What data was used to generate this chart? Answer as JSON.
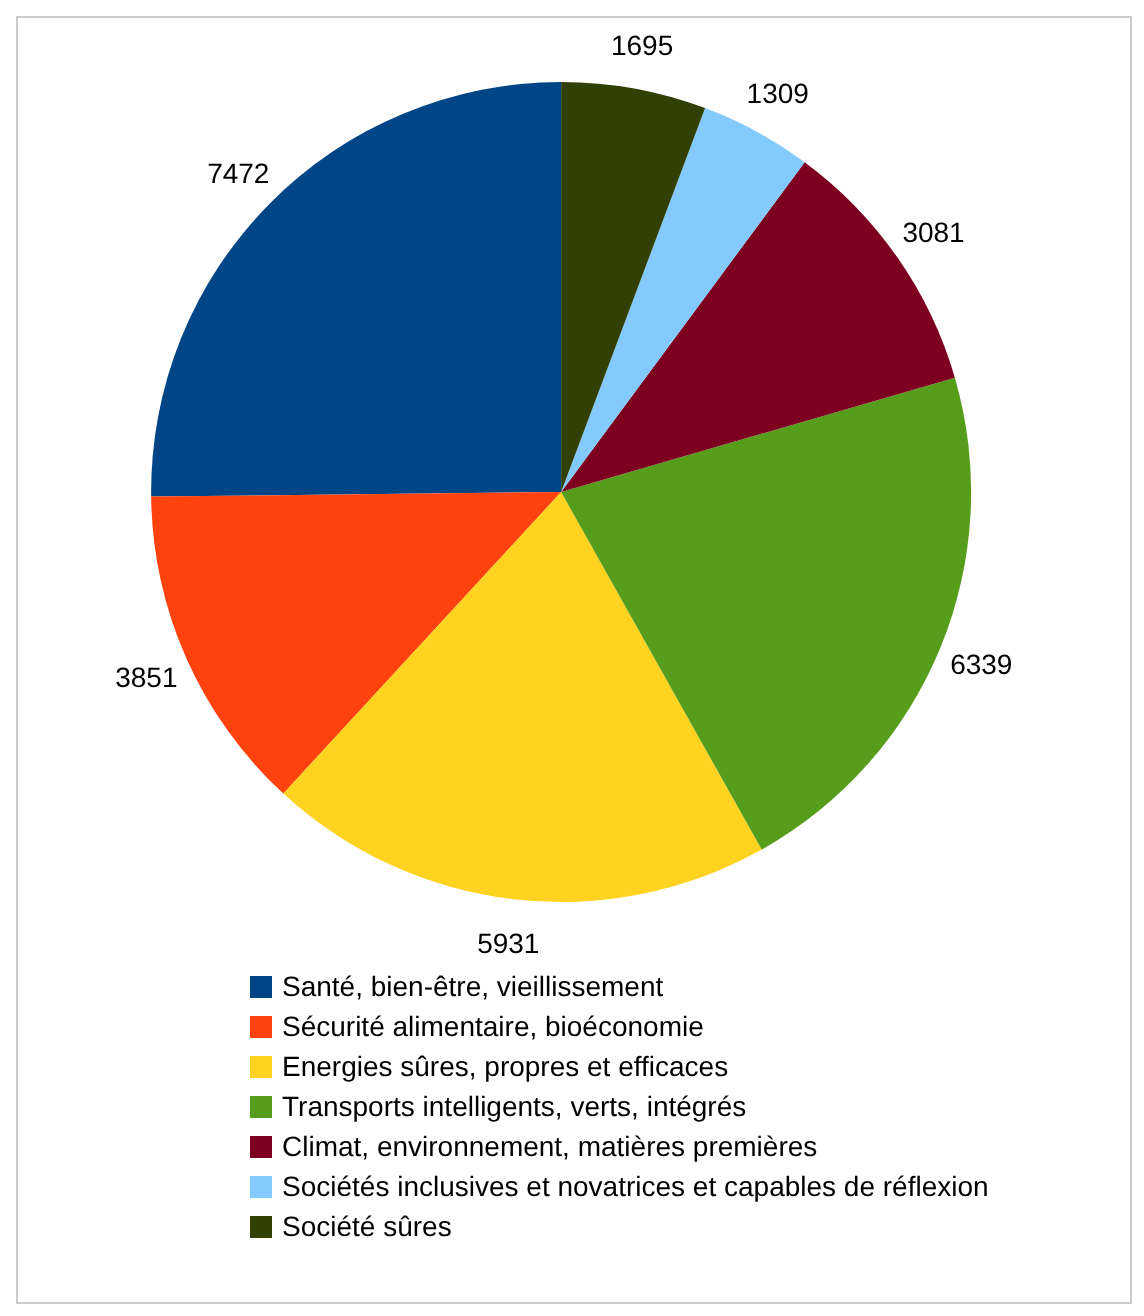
{
  "chart_data": {
    "type": "pie",
    "categories": [
      "Santé, bien-être, vieillissement",
      "Sécurité alimentaire, bioéconomie",
      "Energies sûres, propres et efficaces",
      "Transports intelligents, verts, intégrés",
      "Climat, environnement, matières premières",
      "Sociétés inclusives et novatrices et capables de réflexion",
      "Société sûres"
    ],
    "values": [
      7472,
      3851,
      5931,
      6339,
      3081,
      1309,
      1695
    ],
    "colors": [
      "#004586",
      "#ff420e",
      "#ffd320",
      "#579d1c",
      "#7e0021",
      "#83caff",
      "#314004"
    ],
    "data_labels": true,
    "legend": "bottom"
  }
}
